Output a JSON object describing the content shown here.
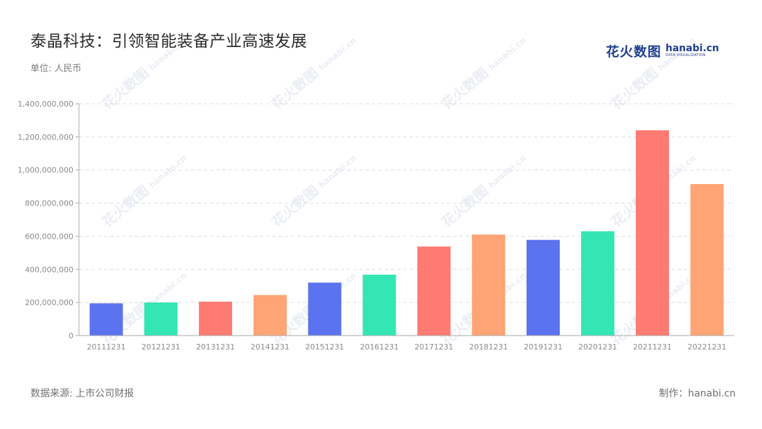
{
  "title": "泰晶科技：引领智能装备产业高速发展",
  "unit_label": "单位: 人民币",
  "logo": {
    "cn": "花火数图",
    "en": "hanabi.cn",
    "sub": "DATA VISUALIZATION"
  },
  "footer": {
    "source": "数据来源: 上市公司财报",
    "credit": "制作：hanabi.cn"
  },
  "watermark": {
    "cn": "花火数图",
    "en": "hanabi.cn"
  },
  "colors": {
    "blue": "#5b73ee",
    "green": "#33e6b3",
    "red": "#ff7a72",
    "orange": "#ffa474",
    "grid": "#dddddd",
    "axis": "#aaaaaa"
  },
  "chart_data": {
    "type": "bar",
    "categories": [
      "20111231",
      "20121231",
      "20131231",
      "20141231",
      "20151231",
      "20161231",
      "20171231",
      "20181231",
      "20191231",
      "20201231",
      "20211231",
      "20221231"
    ],
    "values": [
      195000000,
      200000000,
      205000000,
      245000000,
      320000000,
      368000000,
      538000000,
      610000000,
      578000000,
      630000000,
      1240000000,
      915000000
    ],
    "bar_colors": [
      "#5b73ee",
      "#33e6b3",
      "#ff7a72",
      "#ffa474",
      "#5b73ee",
      "#33e6b3",
      "#ff7a72",
      "#ffa474",
      "#5b73ee",
      "#33e6b3",
      "#ff7a72",
      "#ffa474"
    ],
    "yticks": [
      0,
      200000000,
      400000000,
      600000000,
      800000000,
      1000000000,
      1200000000,
      1400000000
    ],
    "ytick_labels": [
      "0",
      "200,000,000",
      "400,000,000",
      "600,000,000",
      "800,000,000",
      "1,000,000,000",
      "1,200,000,000",
      "1,400,000,000"
    ],
    "ylim": [
      0,
      1400000000
    ],
    "grid": true,
    "title": "泰晶科技：引领智能装备产业高速发展"
  }
}
